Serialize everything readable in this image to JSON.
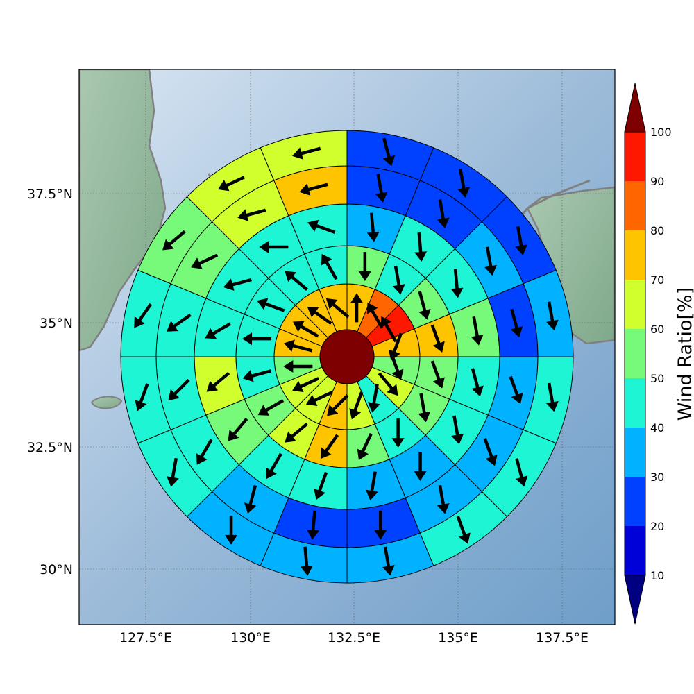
{
  "chart_data": {
    "type": "heatmap",
    "subtype": "polar-sector-map",
    "title": "",
    "xlabel": "",
    "ylabel": "",
    "x_ticks": [
      "127.5°E",
      "130°E",
      "132.5°E",
      "135°E",
      "137.5°E"
    ],
    "y_ticks": [
      "30°N",
      "32.5°N",
      "35°N",
      "37.5°N"
    ],
    "x_tick_values": [
      127.5,
      130,
      132.5,
      135,
      137.5
    ],
    "y_tick_values": [
      30,
      32.5,
      35,
      37.5
    ],
    "xlim": [
      125.8,
      138.8
    ],
    "ylim": [
      28.8,
      39.8
    ],
    "grid": true,
    "projection_center": {
      "lon": 132.5,
      "lat": 34.5
    },
    "ring_count": 5,
    "sector_count": 16,
    "colorbar": {
      "label": "Wind Ratio[%]",
      "bounds": [
        10,
        20,
        30,
        40,
        50,
        60,
        70,
        80,
        90,
        100
      ],
      "colors": [
        "#0000d8",
        "#0040ff",
        "#00b2ff",
        "#1ef5d5",
        "#77fa7a",
        "#d1ff2e",
        "#ffc400",
        "#ff6600",
        "#ff1800"
      ],
      "under_color": "#000080",
      "over_color": "#7f0000",
      "extend": "both"
    },
    "center_cell": {
      "ratio": 100,
      "direction_deg": null
    },
    "rings": [
      {
        "ring": 1,
        "ratio": [
          70,
          85,
          95,
          75,
          55,
          65,
          40,
          60,
          75,
          65,
          65,
          55,
          75,
          75,
          75,
          75
        ],
        "direction_deg": [
          0,
          330,
          330,
          200,
          160,
          140,
          190,
          200,
          225,
          245,
          245,
          270,
          285,
          300,
          305,
          310
        ]
      },
      {
        "ring": 2,
        "ratio": [
          55,
          45,
          50,
          75,
          50,
          55,
          40,
          50,
          75,
          65,
          55,
          45,
          45,
          40,
          40,
          40
        ],
        "direction_deg": [
          180,
          170,
          165,
          160,
          160,
          170,
          180,
          205,
          215,
          230,
          240,
          255,
          270,
          290,
          310,
          330
        ]
      },
      {
        "ring": 3,
        "ratio": [
          35,
          40,
          45,
          55,
          45,
          40,
          35,
          30,
          45,
          45,
          55,
          65,
          45,
          45,
          40,
          40
        ],
        "direction_deg": [
          175,
          175,
          175,
          170,
          165,
          170,
          180,
          190,
          200,
          210,
          220,
          230,
          240,
          255,
          270,
          290
        ]
      },
      {
        "ring": 4,
        "ratio": [
          25,
          25,
          30,
          25,
          30,
          35,
          30,
          25,
          25,
          35,
          40,
          45,
          45,
          55,
          65,
          75
        ],
        "direction_deg": [
          170,
          170,
          170,
          165,
          160,
          160,
          170,
          180,
          185,
          195,
          210,
          225,
          235,
          245,
          255,
          255
        ]
      },
      {
        "ring": 5,
        "ratio": [
          20,
          20,
          25,
          30,
          40,
          40,
          45,
          35,
          30,
          35,
          40,
          45,
          45,
          55,
          60,
          65
        ],
        "direction_deg": [
          165,
          170,
          170,
          170,
          170,
          165,
          160,
          170,
          175,
          180,
          190,
          200,
          215,
          230,
          245,
          255
        ]
      }
    ]
  }
}
